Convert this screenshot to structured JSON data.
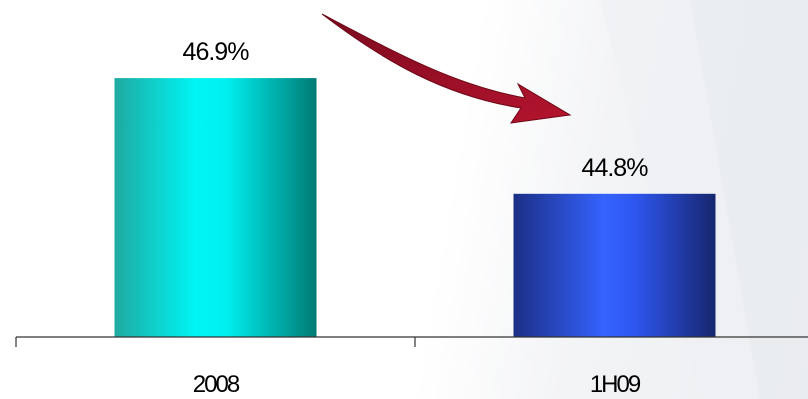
{
  "chart_data": {
    "type": "bar",
    "categories": [
      "2008",
      "1H09"
    ],
    "values": [
      46.9,
      44.8
    ],
    "value_labels": [
      "46.9%",
      "44.8%"
    ],
    "unit": "%",
    "ylim": [
      42.2,
      47.5
    ],
    "grid": false,
    "legend": "none",
    "trend_arrow": "down",
    "colors": {
      "bar_2008": "#00e5e5",
      "bar_2008_edge": "#007a74",
      "bar_1h09": "#2f58ff",
      "bar_1h09_edge": "#1a2c80",
      "arrow": "#a3102a",
      "axis": "#333333"
    }
  }
}
